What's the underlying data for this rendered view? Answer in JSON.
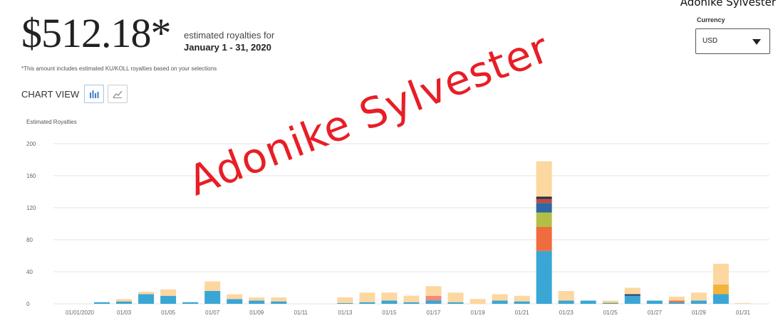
{
  "header": {
    "user_name": "Adonike Sylvester",
    "amount": "$512.18*",
    "est_label": "estimated royalties for",
    "est_range": "January 1 - 31, 2020",
    "disclaimer": "*This amount includes estimated KU/KOLL royalties based on your selections",
    "chart_view_label": "CHART VIEW"
  },
  "currency": {
    "label": "Currency",
    "value": "USD"
  },
  "watermark": "Adonike Sylvester",
  "colors": {
    "blue": "#3aa6d5",
    "orange": "#ef6c3f",
    "olive": "#b3bf44",
    "darkblue": "#2d68a3",
    "red": "#c9463e",
    "darknavy": "#243040",
    "peach": "#fdd7a0",
    "gold": "#f2b53a",
    "salmon": "#f08a7a",
    "navy": "#2c3e73"
  },
  "chart_data": {
    "type": "bar",
    "stacked": true,
    "ylabel": "Estimated Royalties",
    "ylim": [
      0,
      200
    ],
    "yticks": [
      0,
      40,
      80,
      120,
      160,
      200
    ],
    "xtick_labels": [
      "01/01/2020",
      "01/03",
      "01/05",
      "01/07",
      "01/09",
      "01/11",
      "01/13",
      "01/15",
      "01/17",
      "01/19",
      "01/21",
      "01/23",
      "01/25",
      "01/27",
      "01/29",
      "01/31"
    ],
    "categories": [
      "01/01",
      "01/02",
      "01/03",
      "01/04",
      "01/05",
      "01/06",
      "01/07",
      "01/08",
      "01/09",
      "01/10",
      "01/11",
      "01/12",
      "01/13",
      "01/14",
      "01/15",
      "01/16",
      "01/17",
      "01/18",
      "01/19",
      "01/20",
      "01/21",
      "01/22",
      "01/23",
      "01/24",
      "01/25",
      "01/26",
      "01/27",
      "01/28",
      "01/29",
      "01/30",
      "01/31"
    ],
    "series": [
      {
        "color": "blue",
        "values": [
          0,
          2,
          3,
          12,
          10,
          2,
          16,
          6,
          4,
          3,
          0,
          0,
          1,
          2,
          4,
          2,
          4,
          2,
          0,
          4,
          3,
          66,
          4,
          4,
          1,
          10,
          4,
          2,
          4,
          12,
          0
        ]
      },
      {
        "color": "navy",
        "values": [
          0,
          0,
          0,
          0,
          0,
          0,
          0,
          0,
          0,
          0,
          0,
          0,
          0,
          0,
          0,
          0,
          0,
          0,
          0,
          0,
          0,
          0,
          0,
          0,
          0,
          2,
          0,
          0,
          0,
          0,
          0
        ]
      },
      {
        "color": "orange",
        "values": [
          0,
          0,
          0,
          0,
          0,
          0,
          0,
          0,
          0,
          0,
          0,
          0,
          0,
          0,
          0,
          0,
          0,
          0,
          0,
          0,
          0,
          30,
          0,
          0,
          0,
          0,
          0,
          2,
          0,
          0,
          0
        ]
      },
      {
        "color": "salmon",
        "values": [
          0,
          0,
          0,
          0,
          0,
          0,
          0,
          0,
          0,
          0,
          0,
          0,
          0,
          0,
          0,
          0,
          6,
          0,
          0,
          0,
          0,
          0,
          0,
          0,
          0,
          0,
          0,
          0,
          0,
          0,
          0
        ]
      },
      {
        "color": "olive",
        "values": [
          0,
          0,
          0,
          0,
          0,
          0,
          0,
          0,
          0,
          0,
          0,
          0,
          0,
          0,
          0,
          0,
          0,
          0,
          0,
          0,
          0,
          18,
          0,
          0,
          0,
          0,
          0,
          0,
          0,
          0,
          0
        ]
      },
      {
        "color": "darkblue",
        "values": [
          0,
          0,
          0,
          0,
          0,
          0,
          0,
          0,
          0,
          0,
          0,
          0,
          0,
          0,
          0,
          0,
          0,
          0,
          0,
          0,
          0,
          12,
          0,
          0,
          0,
          0,
          0,
          0,
          0,
          0,
          0
        ]
      },
      {
        "color": "red",
        "values": [
          0,
          0,
          0,
          0,
          0,
          0,
          0,
          0,
          0,
          0,
          0,
          0,
          0,
          0,
          0,
          0,
          0,
          0,
          0,
          0,
          0,
          5,
          0,
          0,
          0,
          0,
          0,
          0,
          0,
          0,
          0
        ]
      },
      {
        "color": "darknavy",
        "values": [
          0,
          0,
          0,
          0,
          0,
          0,
          0,
          0,
          0,
          0,
          0,
          0,
          0,
          0,
          0,
          0,
          0,
          0,
          0,
          0,
          0,
          3,
          0,
          0,
          0,
          0,
          0,
          0,
          0,
          0,
          0
        ]
      },
      {
        "color": "gold",
        "values": [
          0,
          0,
          0,
          0,
          0,
          0,
          0,
          0,
          0,
          0,
          0,
          0,
          0,
          0,
          0,
          0,
          0,
          0,
          0,
          0,
          0,
          0,
          0,
          0,
          1,
          0,
          0,
          0,
          0,
          12,
          0
        ]
      },
      {
        "color": "peach",
        "values": [
          0,
          0,
          3,
          3,
          8,
          0,
          12,
          6,
          4,
          5,
          0,
          0,
          7,
          12,
          10,
          8,
          12,
          12,
          6,
          8,
          7,
          44,
          12,
          0,
          2,
          8,
          0,
          5,
          10,
          26,
          1
        ]
      }
    ]
  }
}
